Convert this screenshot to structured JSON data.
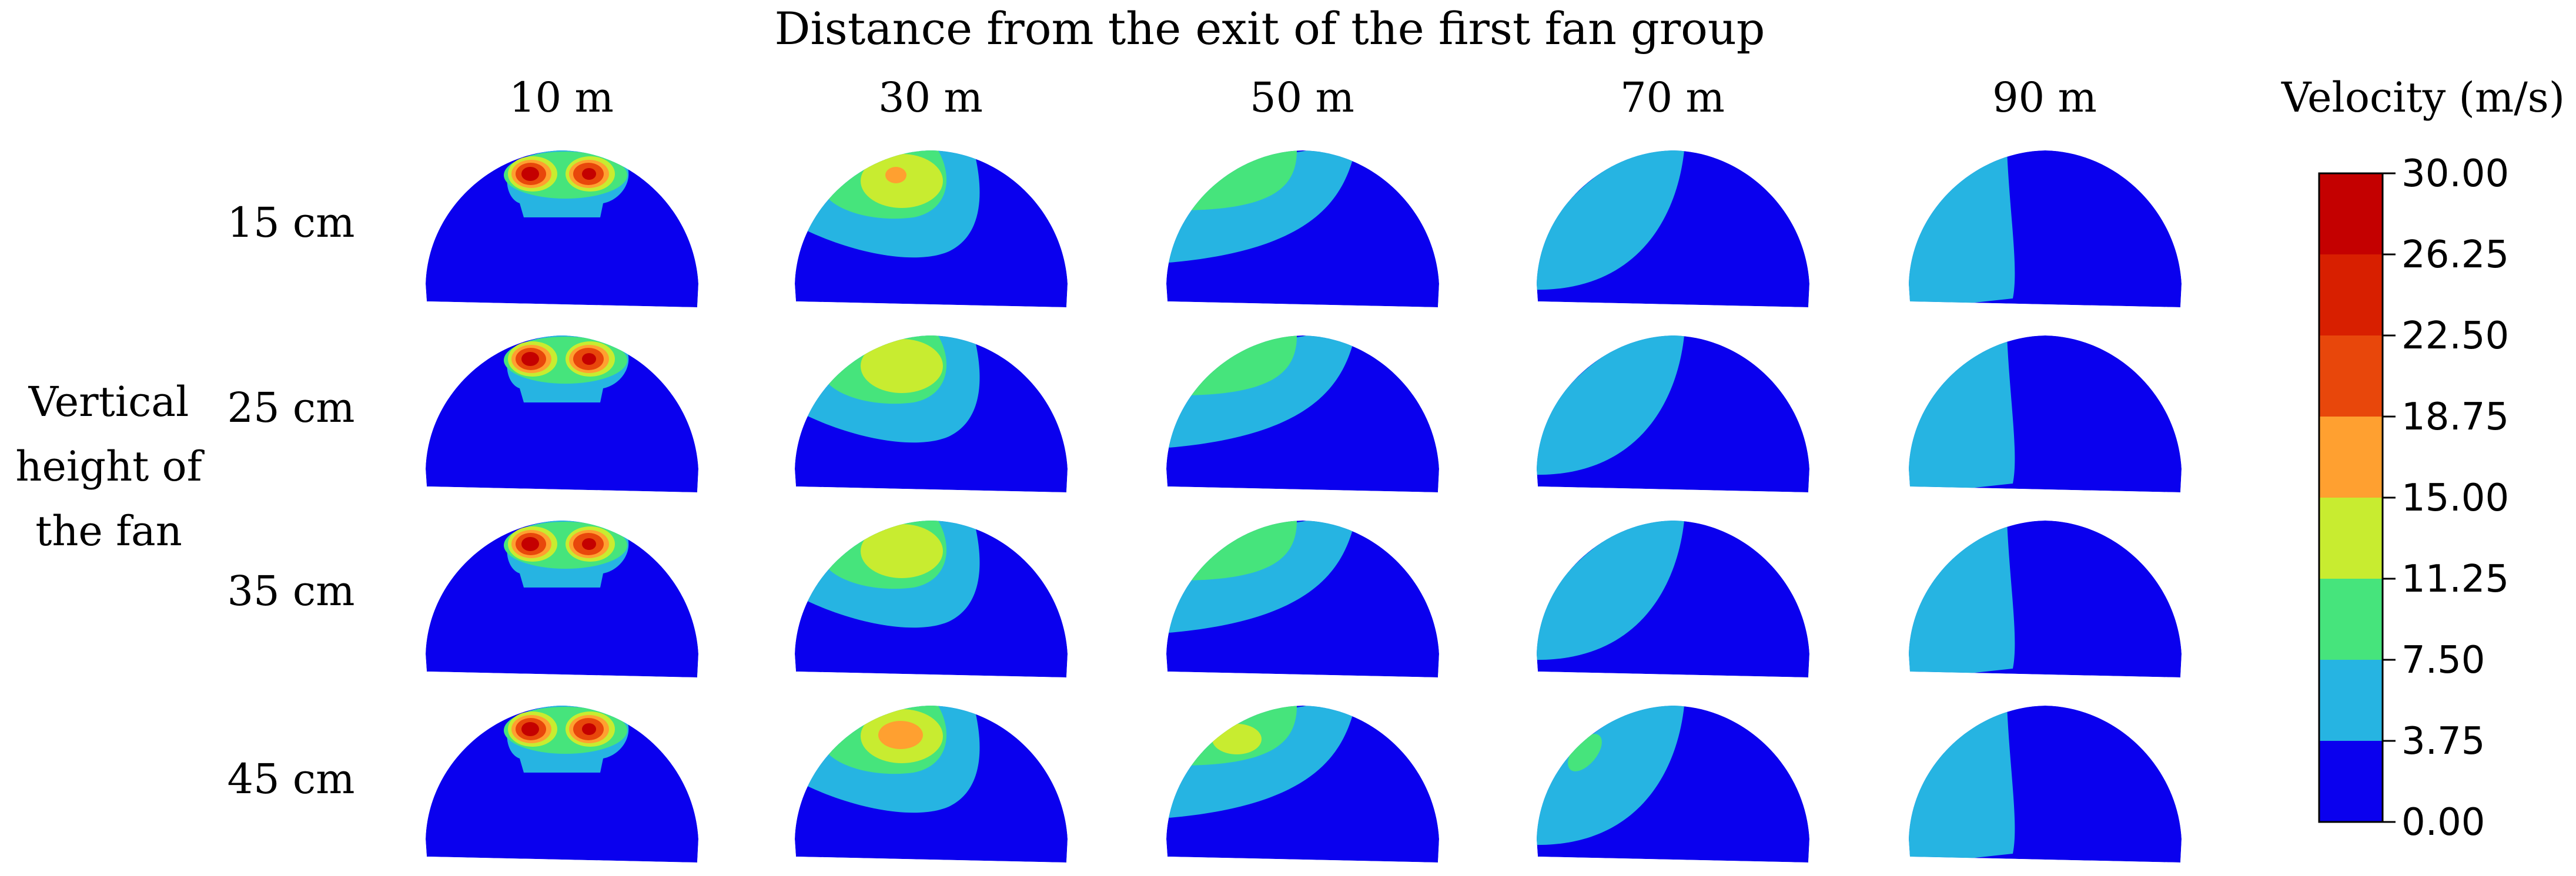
{
  "figure": {
    "column_axis_title": "Distance from the exit of the first fan group",
    "row_axis_title_lines": [
      "Vertical",
      "height of",
      "the fan"
    ],
    "columns": [
      "10 m",
      "30 m",
      "50 m",
      "70 m",
      "90 m"
    ],
    "rows": [
      "15 cm",
      "25 cm",
      "35 cm",
      "45 cm"
    ]
  },
  "colorbar": {
    "title": "Velocity (m/s)",
    "ticks": [
      "30.00",
      "26.25",
      "22.50",
      "18.75",
      "15.00",
      "11.25",
      "7.50",
      "3.75",
      "0.00"
    ],
    "band_colors": [
      "#c40000",
      "#d81f00",
      "#e8470b",
      "#ffa030",
      "#c8ec30",
      "#46e47c",
      "#26b4e2",
      "#0a00ee"
    ]
  },
  "colors": {
    "background_field": "#0a00ee",
    "level_1": "#26b4e2",
    "level_2": "#46e47c",
    "level_3": "#c8ec30",
    "level_4": "#ffa030",
    "level_5": "#e8470b",
    "level_6": "#c40000"
  }
}
